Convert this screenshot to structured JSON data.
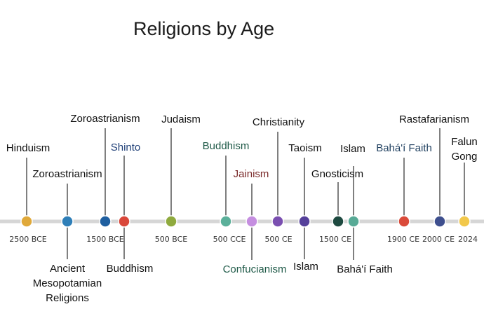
{
  "title": "Religions by Age",
  "axis": {
    "line_color": "#d6d6d6",
    "ticks": [
      {
        "label": "2500 BCE"
      },
      {
        "label": "1500 BCE"
      },
      {
        "label": "500 BCE"
      },
      {
        "label": "500 CCE"
      },
      {
        "label": "500 CE"
      },
      {
        "label": "1500 CE"
      },
      {
        "label": "1900 CE"
      },
      {
        "label": "2000 CE"
      },
      {
        "label": "2024"
      }
    ]
  },
  "events": [
    {
      "id": "hinduism",
      "color": "#e0a93a",
      "labels": [
        {
          "text": "Hinduism",
          "side": "above",
          "color": "#111111"
        }
      ]
    },
    {
      "id": "zoroastrianism-a",
      "color": "#2f7fb8",
      "labels": [
        {
          "text": "Zoroastrianism",
          "side": "above",
          "color": "#111111"
        },
        {
          "text": "Ancient Mesopotamian Religions",
          "side": "below",
          "color": "#111111"
        }
      ]
    },
    {
      "id": "zoroastrianism-b",
      "color": "#1f5fa0",
      "labels": [
        {
          "text": "Zoroastrianism",
          "side": "above",
          "color": "#111111"
        }
      ]
    },
    {
      "id": "shinto",
      "color": "#d9473a",
      "labels": [
        {
          "text": "Shinto",
          "side": "above",
          "color": "#1f3f77"
        },
        {
          "text": "Buddhism",
          "side": "below",
          "color": "#111111"
        }
      ]
    },
    {
      "id": "judaism",
      "color": "#8faa3e",
      "labels": [
        {
          "text": "Judaism",
          "side": "above",
          "color": "#111111"
        }
      ]
    },
    {
      "id": "buddhism",
      "color": "#5bb09a",
      "labels": [
        {
          "text": "Buddhism",
          "side": "above",
          "color": "#1f5a48"
        }
      ]
    },
    {
      "id": "jainism",
      "color": "#c58ee0",
      "labels": [
        {
          "text": "Jainism",
          "side": "above",
          "color": "#7a2a2a"
        },
        {
          "text": "Confucianism",
          "side": "below",
          "color": "#1f5a48"
        }
      ]
    },
    {
      "id": "christianity",
      "color": "#7a4fb0",
      "labels": [
        {
          "text": "Christianity",
          "side": "above",
          "color": "#111111"
        }
      ]
    },
    {
      "id": "taoism",
      "color": "#55409a",
      "labels": [
        {
          "text": "Taoism",
          "side": "above",
          "color": "#111111"
        },
        {
          "text": "Islam",
          "side": "below",
          "color": "#111111"
        }
      ]
    },
    {
      "id": "gnosticism",
      "color": "#1e4a40",
      "labels": [
        {
          "text": "Gnosticism",
          "side": "above",
          "color": "#111111"
        }
      ]
    },
    {
      "id": "islam",
      "color": "#58aa96",
      "labels": [
        {
          "text": "Islam",
          "side": "above",
          "color": "#111111"
        },
        {
          "text": "Bahá'í Faith",
          "side": "below",
          "color": "#111111"
        }
      ]
    },
    {
      "id": "bahai",
      "color": "#da4a3a",
      "labels": [
        {
          "text": "Bahá'í Faith",
          "side": "above",
          "color": "#1f3f5f"
        }
      ]
    },
    {
      "id": "rastafarianism",
      "color": "#3e4f8e",
      "labels": [
        {
          "text": "Rastafarianism",
          "side": "above",
          "color": "#111111"
        }
      ]
    },
    {
      "id": "falun-gong",
      "color": "#f2c84b",
      "labels": [
        {
          "text": "Falun Gong",
          "side": "above",
          "color": "#111111"
        }
      ]
    }
  ]
}
